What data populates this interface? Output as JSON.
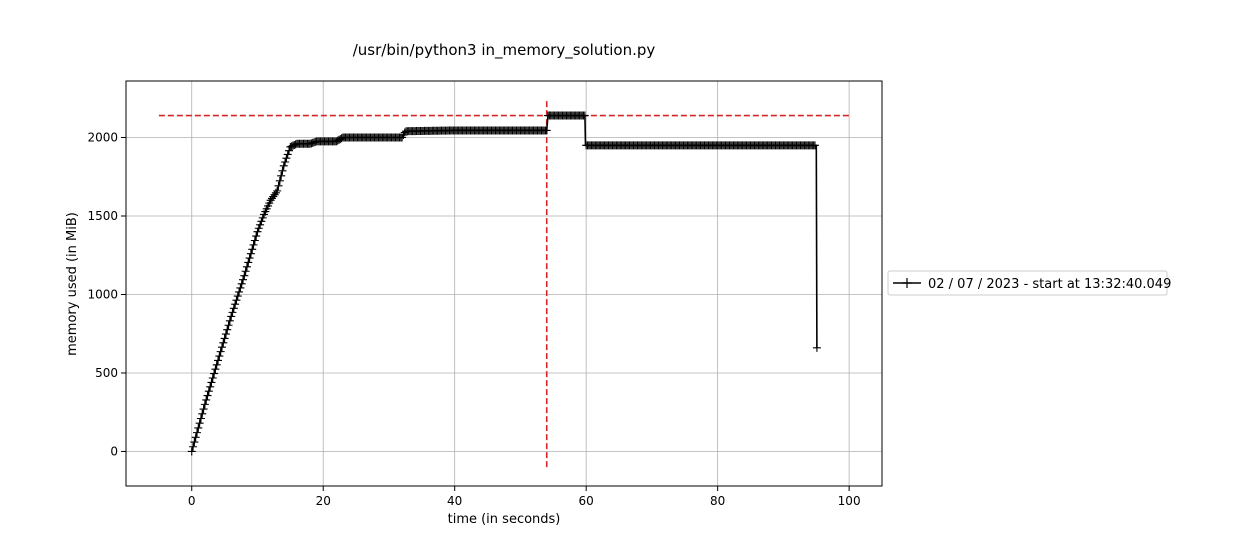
{
  "chart_data": {
    "type": "line",
    "title": "/usr/bin/python3 in_memory_solution.py",
    "xlabel": "time (in seconds)",
    "ylabel": "memory used (in MiB)",
    "xlim": [
      -10,
      105
    ],
    "ylim": [
      -220,
      2360
    ],
    "xticks": [
      0,
      20,
      40,
      60,
      80,
      100
    ],
    "yticks": [
      0,
      500,
      1000,
      1500,
      2000
    ],
    "grid": true,
    "legend_position": "outside-right",
    "colors": {
      "series": "#000000",
      "marker_lines": "#d62728",
      "grid": "#b0b0b0"
    },
    "series": [
      {
        "name": "02 / 07 / 2023 - start at 13:32:40.049",
        "marker": "+",
        "x": [
          0,
          2,
          4,
          6,
          8,
          10,
          11,
          12,
          13,
          14,
          15,
          16,
          18,
          19,
          22,
          23,
          28,
          32,
          32.5,
          40,
          48,
          54,
          54.2,
          57,
          59.8,
          59.9,
          70,
          80,
          95,
          95.1
        ],
        "values": [
          0,
          300,
          580,
          860,
          1120,
          1400,
          1510,
          1600,
          1660,
          1820,
          1940,
          1960,
          1960,
          1975,
          1975,
          2000,
          2000,
          2000,
          2040,
          2045,
          2045,
          2045,
          2140,
          2140,
          2140,
          1950,
          1950,
          1950,
          1950,
          660
        ]
      }
    ],
    "reference_lines": [
      {
        "orientation": "horizontal",
        "value": 2140,
        "x_range": [
          -5,
          100
        ],
        "style": "dashed"
      },
      {
        "orientation": "vertical",
        "value": 54,
        "y_range": [
          -100,
          2250
        ],
        "style": "dashed"
      }
    ]
  }
}
